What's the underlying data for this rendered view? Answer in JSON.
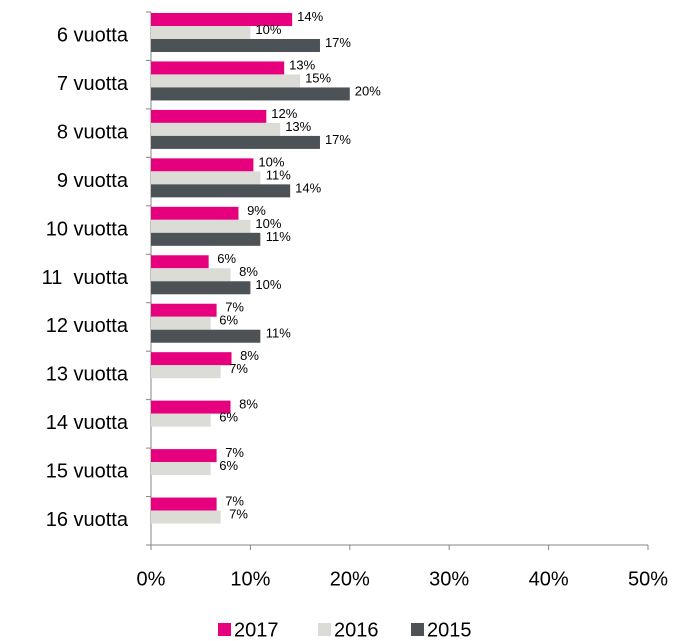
{
  "chart_data": {
    "type": "bar",
    "orientation": "horizontal",
    "categories": [
      "6 vuotta",
      "7 vuotta",
      "8 vuotta",
      "9 vuotta",
      "10 vuotta",
      "11  vuotta",
      "12 vuotta",
      "13 vuotta",
      "14 vuotta",
      "15 vuotta",
      "16 vuotta"
    ],
    "series": [
      {
        "name": "2017",
        "color": "#e6007e",
        "values": [
          14.2,
          13.4,
          11.6,
          10.3,
          8.8,
          5.8,
          6.6,
          8.1,
          8.0,
          6.6,
          6.6
        ],
        "value_labels": [
          "14%",
          "13%",
          "12%",
          "10%",
          "9%",
          "6%",
          "7%",
          "8%",
          "8%",
          "7%",
          "7%"
        ]
      },
      {
        "name": "2016",
        "color": "#dcdcd6",
        "values": [
          10,
          15,
          13,
          11,
          10,
          8,
          6,
          7,
          6,
          6,
          7
        ],
        "value_labels": [
          "10%",
          "15%",
          "13%",
          "11%",
          "10%",
          "8%",
          "6%",
          "7%",
          "6%",
          "6%",
          "7%"
        ]
      },
      {
        "name": "2015",
        "color": "#4d5257",
        "values": [
          17,
          20,
          17,
          14,
          11,
          10,
          11,
          null,
          null,
          null,
          null
        ],
        "value_labels": [
          "17%",
          "20%",
          "17%",
          "14%",
          "11%",
          "10%",
          "11%",
          null,
          null,
          null,
          null
        ]
      }
    ],
    "xlim": [
      0,
      50
    ],
    "xticks": [
      {
        "value": 0,
        "label": "0%"
      },
      {
        "value": 10,
        "label": "10%"
      },
      {
        "value": 20,
        "label": "20%"
      },
      {
        "value": 30,
        "label": "30%"
      },
      {
        "value": 40,
        "label": "40%"
      },
      {
        "value": 50,
        "label": "50%"
      }
    ],
    "legend": "bottom"
  }
}
